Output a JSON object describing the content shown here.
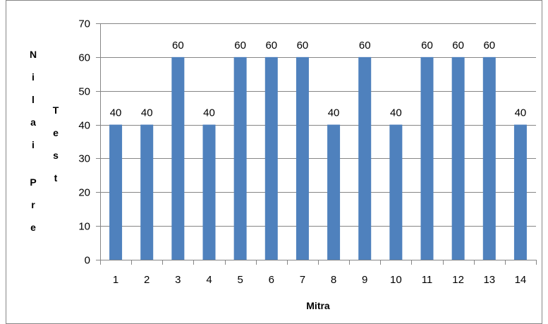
{
  "chart_data": {
    "type": "bar",
    "categories": [
      "1",
      "2",
      "3",
      "4",
      "5",
      "6",
      "7",
      "8",
      "9",
      "10",
      "11",
      "12",
      "13",
      "14"
    ],
    "values": [
      40,
      40,
      60,
      40,
      60,
      60,
      60,
      40,
      60,
      40,
      60,
      60,
      60,
      40
    ],
    "data_labels": [
      "40",
      "40",
      "60",
      "40",
      "60",
      "60",
      "60",
      "40",
      "60",
      "40",
      "60",
      "60",
      "60",
      "40"
    ],
    "yticks": [
      "0",
      "10",
      "20",
      "30",
      "40",
      "50",
      "60",
      "70"
    ],
    "ylim": [
      0,
      70
    ],
    "xlabel": "Mitra",
    "ylabel": "Nilai Pre Test",
    "ylabel_col1": [
      "N",
      "i",
      "l",
      "a",
      "i",
      "P",
      "r",
      "e"
    ],
    "ylabel_col2": [
      "T",
      "e",
      "s",
      "t"
    ],
    "grid": true,
    "legend": "none",
    "bar_color": "#4F81BD",
    "grid_color": "#868686",
    "frame_color": "#868686"
  }
}
